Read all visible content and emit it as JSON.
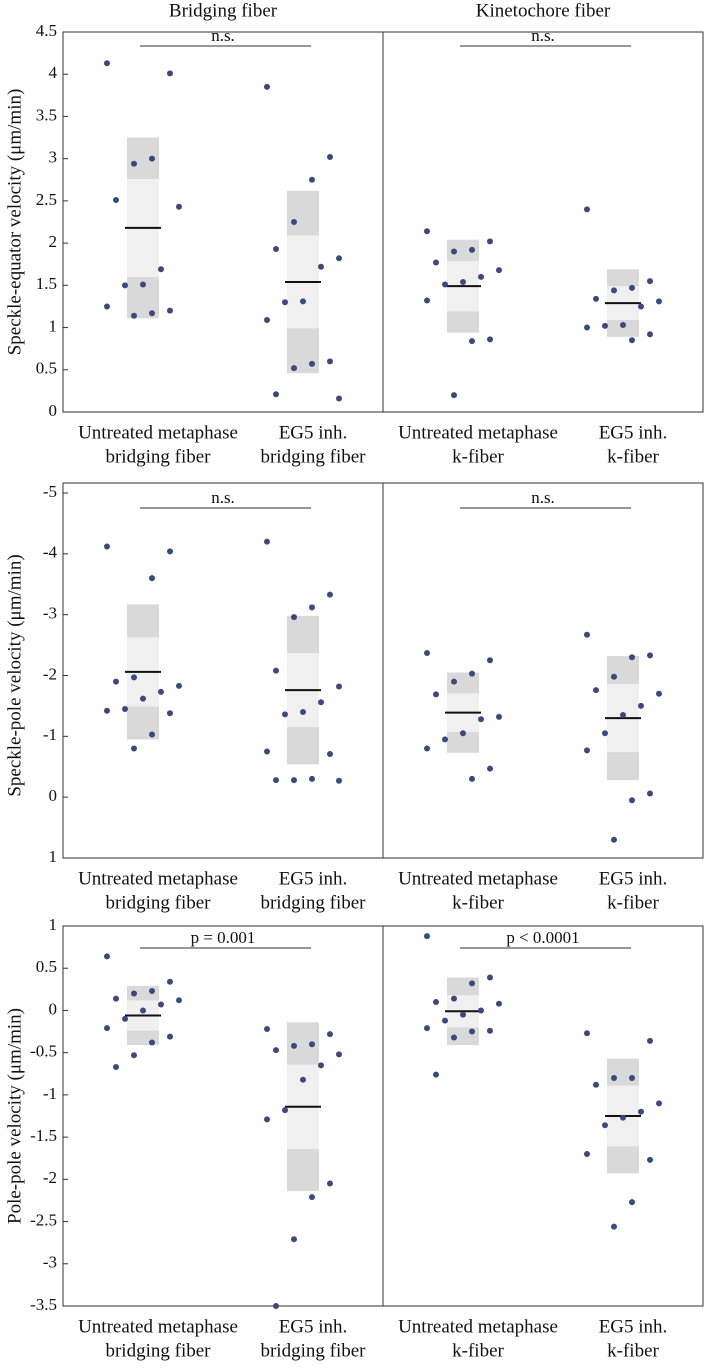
{
  "chart_data": [
    {
      "type": "strip",
      "ylabel": "Speckle-equator velocity (μm/min)",
      "ylim": [
        0,
        4.5
      ],
      "yticks": [
        0,
        0.5,
        1,
        1.5,
        2,
        2.5,
        3,
        3.5,
        4,
        4.5
      ],
      "color": "#3b4a7c",
      "sd_color": "#d9d9d9",
      "ci_color": "#f0f0f0",
      "panels": [
        {
          "title": "Bridging fiber",
          "comparison": "n.s.",
          "groups": [
            {
              "label": [
                "Untreated metaphase",
                "bridging fiber"
              ],
              "values": [
                4.13,
                4.01,
                3.0,
                2.94,
                2.51,
                2.43,
                1.69,
                1.51,
                1.5,
                1.25,
                1.2,
                1.17,
                1.14
              ],
              "mean": 2.18,
              "sd": 1.07,
              "ci": 0.58
            },
            {
              "label": [
                "EG5 inh.",
                "bridging fiber"
              ],
              "values": [
                3.85,
                3.02,
                2.75,
                2.25,
                1.93,
                1.82,
                1.72,
                1.31,
                1.3,
                1.09,
                0.6,
                0.57,
                0.52,
                0.21,
                0.16
              ],
              "mean": 1.54,
              "sd": 1.08,
              "ci": 0.55
            }
          ]
        },
        {
          "title": "Kinetochore fiber",
          "comparison": "n.s.",
          "groups": [
            {
              "label": [
                "Untreated metaphase",
                "k-fiber"
              ],
              "values": [
                2.14,
                2.02,
                1.92,
                1.9,
                1.77,
                1.68,
                1.6,
                1.54,
                1.51,
                1.32,
                0.86,
                0.84,
                0.2
              ],
              "mean": 1.49,
              "sd": 0.55,
              "ci": 0.3
            },
            {
              "label": [
                "EG5 inh.",
                "k-fiber"
              ],
              "values": [
                2.4,
                1.55,
                1.47,
                1.44,
                1.34,
                1.31,
                1.25,
                1.03,
                1.02,
                1.0,
                0.92,
                0.85
              ],
              "mean": 1.29,
              "sd": 0.4,
              "ci": 0.2
            }
          ]
        }
      ]
    },
    {
      "type": "strip",
      "ylabel": "Speckle-pole velocity (μm/min)",
      "ylim": [
        1,
        -5
      ],
      "yticks": [
        1,
        0,
        -1,
        -2,
        -3,
        -4,
        -5
      ],
      "color": "#3b4a7c",
      "sd_color": "#d9d9d9",
      "ci_color": "#f0f0f0",
      "panels": [
        {
          "comparison": "n.s.",
          "groups": [
            {
              "label": [
                "Untreated metaphase",
                "bridging fiber"
              ],
              "values": [
                -4.12,
                -4.04,
                -3.6,
                -1.97,
                -1.9,
                -1.83,
                -1.73,
                -1.62,
                -1.45,
                -1.42,
                -1.38,
                -1.03,
                -0.8
              ],
              "mean": -2.06,
              "sd": 1.11,
              "ci": 0.57
            },
            {
              "label": [
                "EG5 inh.",
                "bridging fiber"
              ],
              "values": [
                -4.2,
                -3.33,
                -3.12,
                -2.96,
                -2.08,
                -1.82,
                -1.56,
                -1.4,
                -1.36,
                -0.75,
                -0.71,
                -0.3,
                -0.28,
                -0.28,
                -0.27
              ],
              "mean": -1.76,
              "sd": 1.22,
              "ci": 0.61
            }
          ]
        },
        {
          "comparison": "n.s.",
          "groups": [
            {
              "label": [
                "Untreated metaphase",
                "k-fiber"
              ],
              "values": [
                -2.37,
                -2.25,
                -2.03,
                -1.9,
                -1.69,
                -1.32,
                -1.28,
                -1.05,
                -0.95,
                -0.8,
                -0.47,
                -0.3
              ],
              "mean": -1.39,
              "sd": 0.66,
              "ci": 0.32
            },
            {
              "label": [
                "EG5 inh.",
                "k-fiber"
              ],
              "values": [
                -2.67,
                -2.33,
                -2.3,
                -1.98,
                -1.76,
                -1.7,
                -1.5,
                -1.35,
                -1.05,
                -0.77,
                -0.06,
                0.05,
                0.7
              ],
              "mean": -1.3,
              "sd": 1.02,
              "ci": 0.56
            }
          ]
        }
      ]
    },
    {
      "type": "strip",
      "ylabel": "Pole-pole velocity (μm/min)",
      "ylim": [
        -3.5,
        1
      ],
      "yticks": [
        -3.5,
        -3,
        -2.5,
        -2,
        -1.5,
        -1,
        -0.5,
        0,
        0.5,
        1
      ],
      "color": "#3b4a7c",
      "sd_color": "#d9d9d9",
      "ci_color": "#f0f0f0",
      "panels": [
        {
          "comparison": "p = 0.001",
          "groups": [
            {
              "label": [
                "Untreated metaphase",
                "bridging fiber"
              ],
              "values": [
                0.64,
                0.34,
                0.23,
                0.2,
                0.14,
                0.12,
                0.07,
                0.0,
                -0.1,
                -0.21,
                -0.31,
                -0.38,
                -0.53,
                -0.67
              ],
              "mean": -0.06,
              "sd": 0.35,
              "ci": 0.18
            },
            {
              "label": [
                "EG5 inh.",
                "bridging fiber"
              ],
              "values": [
                -0.22,
                -0.28,
                -0.4,
                -0.42,
                -0.47,
                -0.52,
                -0.65,
                -0.82,
                -1.18,
                -1.29,
                -2.05,
                -2.21,
                -2.71,
                -3.5
              ],
              "mean": -1.14,
              "sd": 1.0,
              "ci": 0.5
            }
          ]
        },
        {
          "comparison": "p < 0.0001",
          "groups": [
            {
              "label": [
                "Untreated metaphase",
                "k-fiber"
              ],
              "values": [
                0.88,
                0.39,
                0.32,
                0.14,
                0.1,
                0.08,
                0.0,
                -0.05,
                -0.12,
                -0.21,
                -0.24,
                -0.25,
                -0.32,
                -0.76
              ],
              "mean": -0.01,
              "sd": 0.4,
              "ci": 0.19
            },
            {
              "label": [
                "EG5 inh.",
                "k-fiber"
              ],
              "values": [
                -0.27,
                -0.36,
                -0.8,
                -0.8,
                -0.88,
                -1.1,
                -1.2,
                -1.27,
                -1.36,
                -1.7,
                -1.77,
                -2.27,
                -2.56
              ],
              "mean": -1.25,
              "sd": 0.68,
              "ci": 0.36
            }
          ]
        }
      ]
    }
  ]
}
